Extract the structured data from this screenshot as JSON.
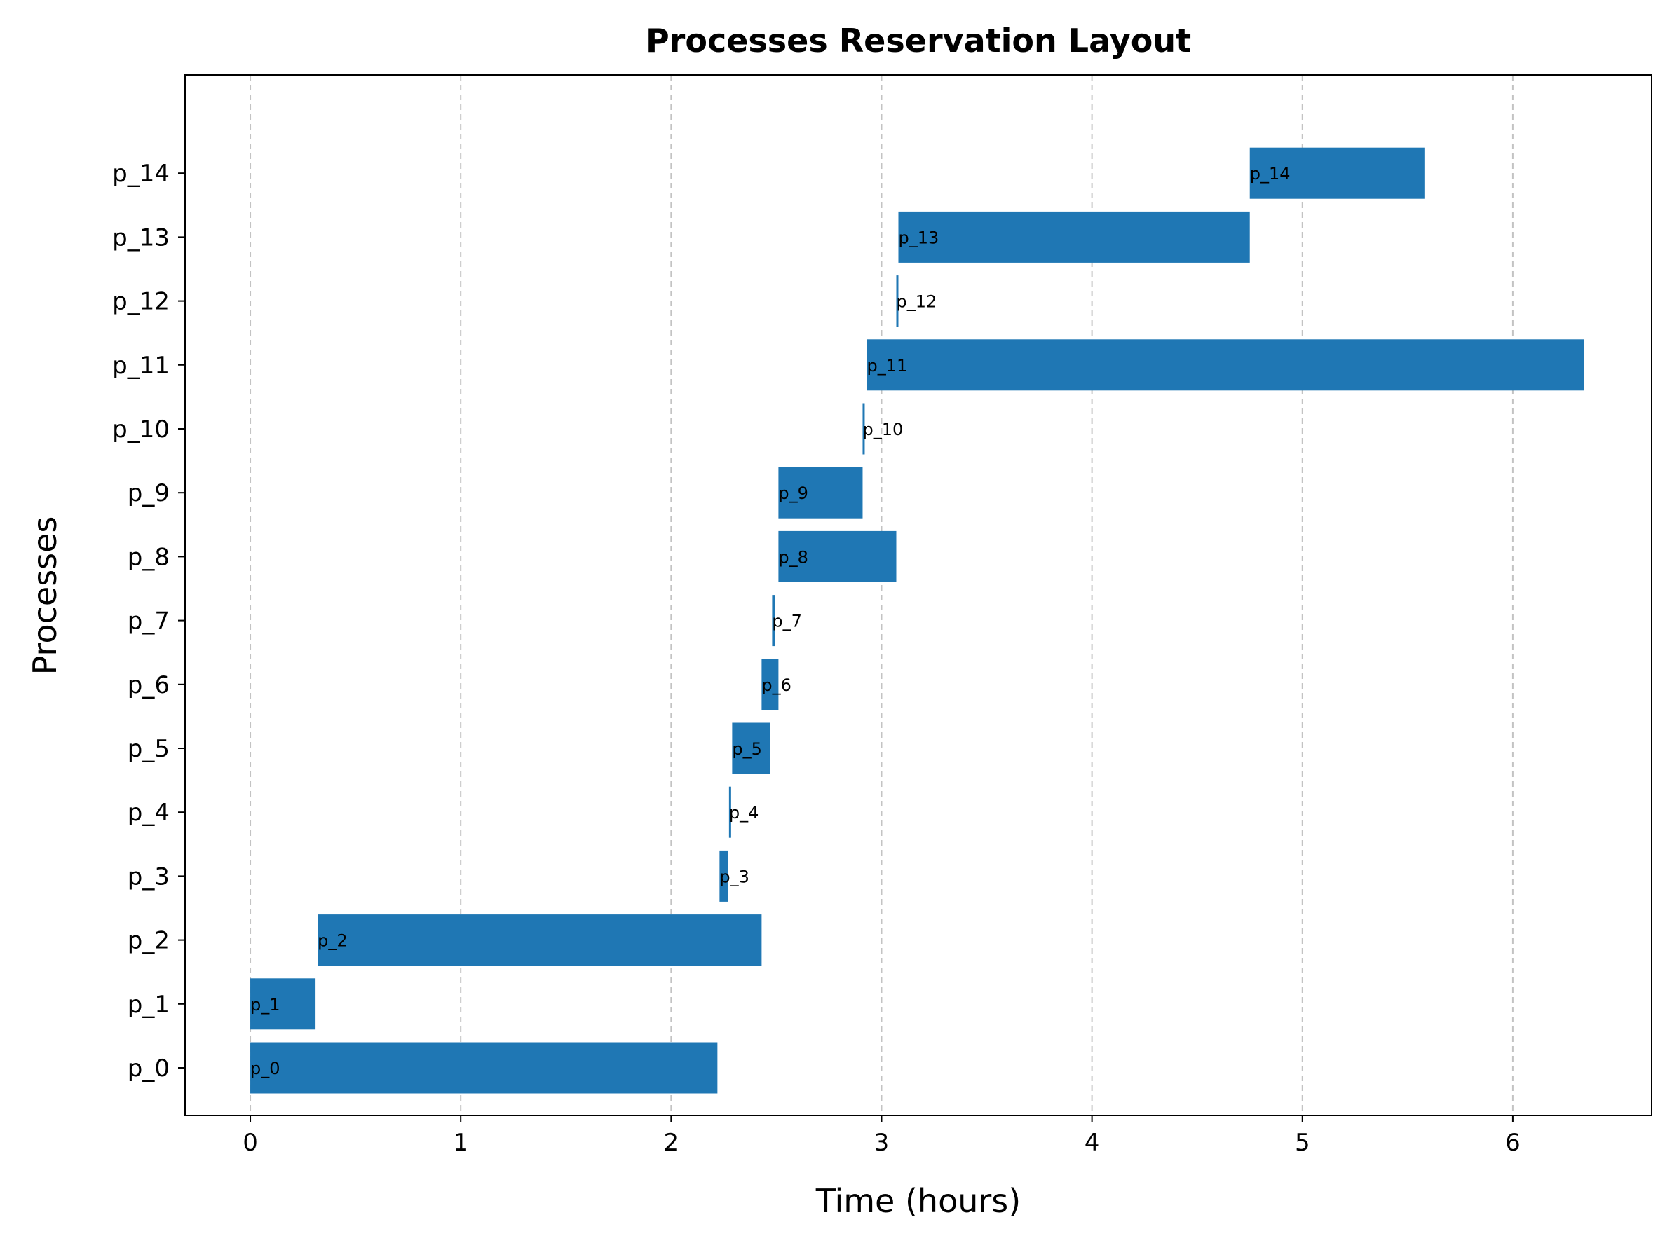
{
  "chart_data": {
    "type": "bar",
    "orientation": "horizontal",
    "title": "Processes Reservation Layout",
    "xlabel": "Time (hours)",
    "ylabel": "Processes",
    "xlim": [
      -0.31,
      6.66
    ],
    "xticks": [
      "0",
      "1",
      "2",
      "3",
      "4",
      "5",
      "6"
    ],
    "grid": "x",
    "bar_color": "#1f77b4",
    "categories": [
      "p_0",
      "p_1",
      "p_2",
      "p_3",
      "p_4",
      "p_5",
      "p_6",
      "p_7",
      "p_8",
      "p_9",
      "p_10",
      "p_11",
      "p_12",
      "p_13",
      "p_14"
    ],
    "bars": [
      {
        "label": "p_0",
        "start": 0.0,
        "duration": 2.22
      },
      {
        "label": "p_1",
        "start": 0.0,
        "duration": 0.31
      },
      {
        "label": "p_2",
        "start": 0.32,
        "duration": 2.11
      },
      {
        "label": "p_3",
        "start": 2.23,
        "duration": 0.04
      },
      {
        "label": "p_4",
        "start": 2.275,
        "duration": 0.01
      },
      {
        "label": "p_5",
        "start": 2.29,
        "duration": 0.18
      },
      {
        "label": "p_6",
        "start": 2.43,
        "duration": 0.08
      },
      {
        "label": "p_7",
        "start": 2.48,
        "duration": 0.015
      },
      {
        "label": "p_8",
        "start": 2.51,
        "duration": 0.56
      },
      {
        "label": "p_9",
        "start": 2.51,
        "duration": 0.4
      },
      {
        "label": "p_10",
        "start": 2.91,
        "duration": 0.01
      },
      {
        "label": "p_11",
        "start": 2.93,
        "duration": 3.41
      },
      {
        "label": "p_12",
        "start": 3.07,
        "duration": 0.01
      },
      {
        "label": "p_13",
        "start": 3.08,
        "duration": 1.67
      },
      {
        "label": "p_14",
        "start": 4.75,
        "duration": 0.83
      }
    ]
  }
}
